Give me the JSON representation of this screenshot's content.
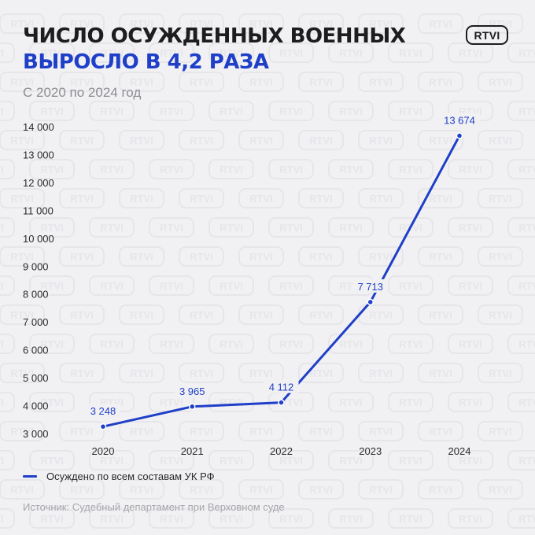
{
  "header": {
    "title_line1": "ЧИСЛО ОСУЖДЕННЫХ ВОЕННЫХ",
    "title_line2": "ВЫРОСЛО В 4,2 РАЗА",
    "subtitle": "С 2020 по 2024 год",
    "logo": "RTVI",
    "watermark": "RTVI"
  },
  "colors": {
    "accent": "#1f3fc8",
    "text": "#1d1d1f",
    "muted": "#8d8d92",
    "background": "#f1f1f3"
  },
  "chart_data": {
    "type": "line",
    "categories": [
      "2020",
      "2021",
      "2022",
      "2023",
      "2024"
    ],
    "series": [
      {
        "name": "Осуждено по всем составам УК РФ",
        "values": [
          3248,
          3965,
          4112,
          7713,
          13674
        ]
      }
    ],
    "value_labels": [
      "3 248",
      "3 965",
      "4 112",
      "7 713",
      "13 674"
    ],
    "y_ticks": [
      3000,
      4000,
      5000,
      6000,
      7000,
      8000,
      9000,
      10000,
      11000,
      12000,
      13000,
      14000
    ],
    "y_tick_labels": [
      "3 000",
      "4 000",
      "5 000",
      "6 000",
      "7 000",
      "8 000",
      "9 000",
      "10 000",
      "11 000",
      "12 000",
      "13 000",
      "14 000"
    ],
    "ylim": [
      3000,
      14000
    ],
    "grid": false,
    "legend_position": "bottom-left"
  },
  "legend": {
    "label": "Осуждено по всем составам УК РФ"
  },
  "source": "Источник: Судебный департамент при Верховном суде"
}
